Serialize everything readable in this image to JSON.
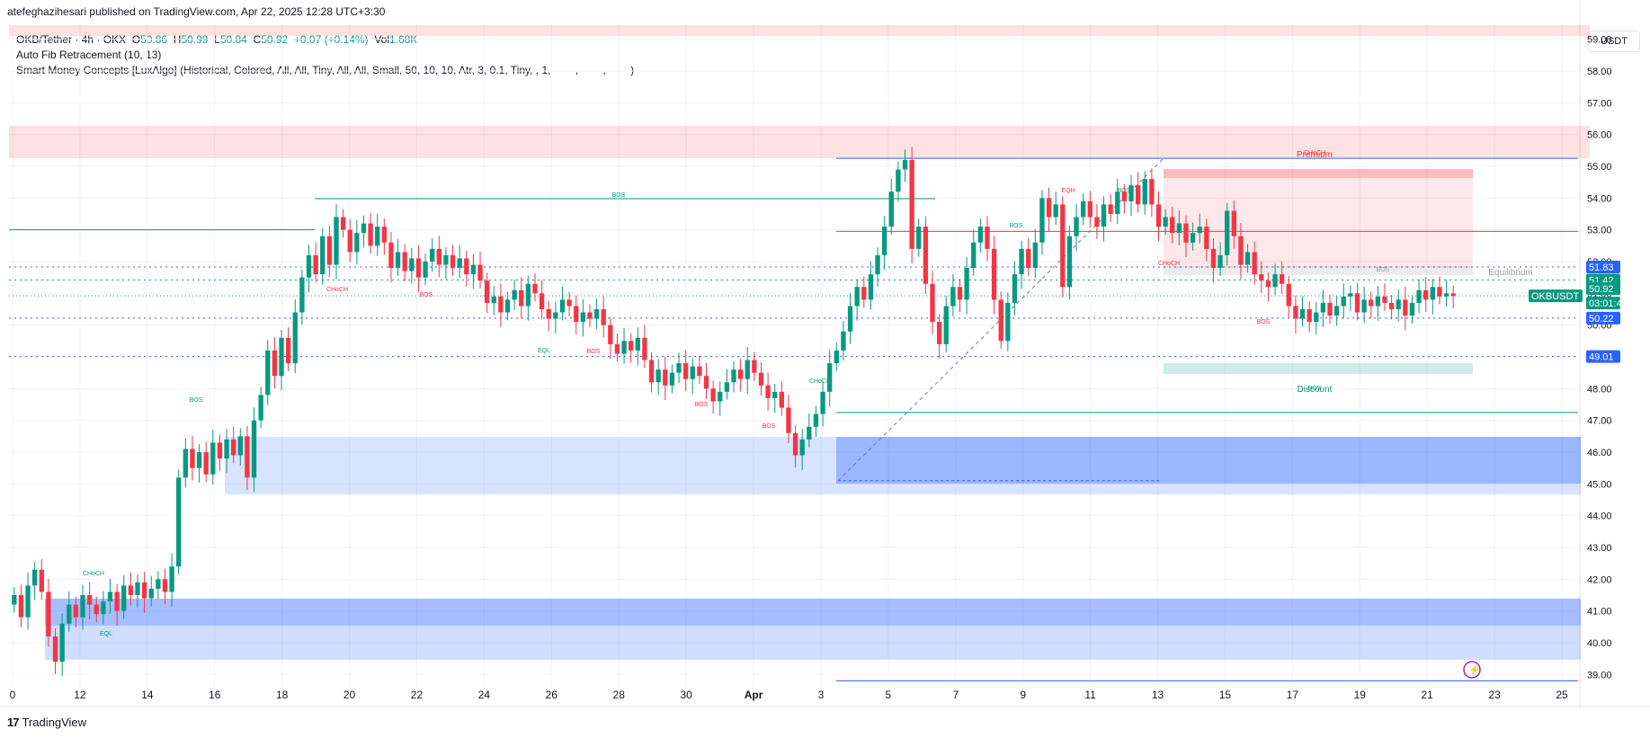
{
  "header": {
    "published": "atefeghazihesari published on TradingView.com, Apr 22, 2025 12:28 UTC+3:30"
  },
  "legend": {
    "symbol": "OKB/Tether · 4h · OKX",
    "o_label": "O",
    "o_value": "50.86",
    "h_label": "H",
    "h_value": "50.99",
    "l_label": "L",
    "l_value": "50.84",
    "c_label": "C",
    "c_value": "50.92",
    "change": "+0.07 (+0.14%)",
    "vol_label": "Vol",
    "vol_value": "1.68K",
    "indicator1": "Auto Fib Retracement (10, 13)",
    "indicator2": "Smart Money Concepts [LuxAlgo] (Historical, Colored, All, All, Tiny, All, All, Small, 50, 10, 10, Atr, 3, 0.1, Tiny, , 1, ——, ——, ——)"
  },
  "currency": "USDT",
  "footer": {
    "logo_mark": "17",
    "brand": "TradingView"
  },
  "colors": {
    "up": "#089981",
    "down": "#f23645",
    "fib_blue": "#2962ff",
    "premium": "#f23645",
    "discount": "#089981",
    "ob_blue": "#2962ff"
  },
  "chart_data": {
    "type": "candlestick",
    "symbol": "OKBUSDT",
    "interval": "4h",
    "ylim": [
      38.5,
      59.5
    ],
    "y_ticks": [
      "59.00",
      "58.00",
      "57.00",
      "56.00",
      "55.00",
      "54.00",
      "53.00",
      "52.00",
      "51.00",
      "50.00",
      "49.00",
      "48.00",
      "47.00",
      "46.00",
      "45.00",
      "44.00",
      "43.00",
      "42.00",
      "41.00",
      "40.00",
      "39.00"
    ],
    "x_ticks": [
      "0",
      "12",
      "14",
      "16",
      "18",
      "20",
      "22",
      "24",
      "26",
      "28",
      "30",
      "Apr",
      "3",
      "5",
      "7",
      "9",
      "11",
      "13",
      "15",
      "17",
      "19",
      "21",
      "23",
      "25"
    ],
    "price_badges": [
      {
        "label": "51.83",
        "value": 51.83,
        "color": "#2962ff"
      },
      {
        "label": "51.42",
        "value": 51.42,
        "color": "#089981"
      },
      {
        "label": "OKBUSDT",
        "value": 50.92,
        "color": "#089981"
      },
      {
        "label": "50.92",
        "value": 50.92,
        "color": "#089981"
      },
      {
        "label": "03:01:44",
        "value": 50.92,
        "color": "#089981"
      },
      {
        "label": "50.22",
        "value": 50.22,
        "color": "#2962ff"
      },
      {
        "label": "49.01",
        "value": 49.01,
        "color": "#2962ff"
      }
    ],
    "zones": [
      {
        "name": "Premium",
        "label": "Premium"
      },
      {
        "name": "Equilibrium",
        "label": "Equilibrium"
      },
      {
        "name": "Discount",
        "label": "Discount"
      }
    ],
    "structure_labels": [
      "BOS",
      "BOS",
      "CHoCH",
      "EQL",
      "BOS",
      "EQL",
      "BOS",
      "BOS",
      "BOS",
      "CHoCH",
      "BOS",
      "CHoCH",
      "EQH",
      "BOS",
      "BOS",
      "CHoCH",
      "BOS",
      "CHoCH",
      "BOS"
    ],
    "closes": [
      41.5,
      40.8,
      41.8,
      42.3,
      41.6,
      40.2,
      39.4,
      40.6,
      41.2,
      40.8,
      41.5,
      41.2,
      40.9,
      41.3,
      41.6,
      41.0,
      41.8,
      41.5,
      41.9,
      41.4,
      41.7,
      42.0,
      41.6,
      42.4,
      45.2,
      46.1,
      45.5,
      46.0,
      45.3,
      46.3,
      45.8,
      46.4,
      45.9,
      46.5,
      45.2,
      47.0,
      47.8,
      49.2,
      48.4,
      49.6,
      48.8,
      50.4,
      51.5,
      52.2,
      51.6,
      52.8,
      51.9,
      53.4,
      53.0,
      52.3,
      52.9,
      53.2,
      52.5,
      53.1,
      52.6,
      51.8,
      52.3,
      51.7,
      52.1,
      51.5,
      52.0,
      52.4,
      51.9,
      52.2,
      51.8,
      52.1,
      51.6,
      51.9,
      51.4,
      50.7,
      50.9,
      50.4,
      50.8,
      51.1,
      50.6,
      51.3,
      51.0,
      50.5,
      50.2,
      50.4,
      50.8,
      50.6,
      50.1,
      50.4,
      50.2,
      50.5,
      50.0,
      49.4,
      49.1,
      49.5,
      49.2,
      49.6,
      48.9,
      48.2,
      48.6,
      48.1,
      48.5,
      48.8,
      48.3,
      48.7,
      48.4,
      48.0,
      47.6,
      47.9,
      48.2,
      48.6,
      48.3,
      48.9,
      48.5,
      48.1,
      47.7,
      47.9,
      47.4,
      46.6,
      45.9,
      46.4,
      46.8,
      47.2,
      47.9,
      48.8,
      49.2,
      49.8,
      50.6,
      51.2,
      50.8,
      51.6,
      52.2,
      53.1,
      54.2,
      54.9,
      55.2,
      52.4,
      53.1,
      51.3,
      50.1,
      49.4,
      50.6,
      51.2,
      50.8,
      51.8,
      52.6,
      53.1,
      52.4,
      50.8,
      49.5,
      50.7,
      51.6,
      52.4,
      51.8,
      52.6,
      54.0,
      53.4,
      53.8,
      51.2,
      52.8,
      53.4,
      53.9,
      53.4,
      53.1,
      53.8,
      53.5,
      54.2,
      53.9,
      54.4,
      53.8,
      54.6,
      53.8,
      53.1,
      53.4,
      52.9,
      53.2,
      52.6,
      52.9,
      53.1,
      52.4,
      51.8,
      52.2,
      53.6,
      52.8,
      51.9,
      52.3,
      51.6,
      51.4,
      51.2,
      51.6,
      51.3,
      50.6,
      50.2,
      50.5,
      50.1,
      50.4,
      50.7,
      50.3,
      50.6,
      50.9,
      51.0,
      50.4,
      50.8,
      50.6,
      50.9,
      50.7,
      50.5,
      50.8,
      50.3,
      50.7,
      51.1,
      50.8,
      51.2,
      50.9,
      51.0,
      50.92
    ]
  }
}
